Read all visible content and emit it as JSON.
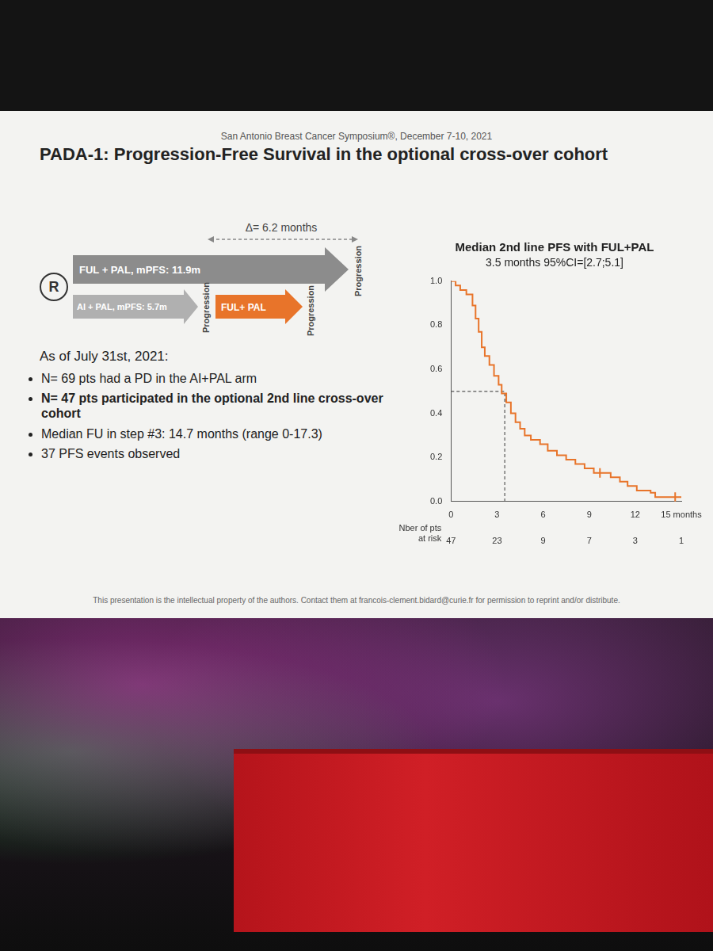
{
  "slide": {
    "header": "San Antonio Breast Cancer Symposium®, December 7-10, 2021",
    "title": "PADA-1: Progression-Free Survival in the optional cross-over cohort",
    "diagram": {
      "randomization": "R",
      "delta": "Δ= 6.2 months",
      "arm_1": "FUL + PAL, mPFS: 11.9m",
      "arm_2": "AI + PAL, mPFS: 5.7m",
      "cross_over": "FUL+ PAL",
      "event": "Progression"
    },
    "intro": "As of July 31st, 2021:",
    "bullets": [
      "N= 69 pts had a PD in the AI+PAL arm",
      "N= 47 pts participated in the optional 2nd line cross-over cohort",
      "Median FU in step #3: 14.7 months (range 0-17.3)",
      "37 PFS events observed"
    ],
    "footer": "This presentation is the intellectual property of the authors. Contact them at francois-clement.bidard@curie.fr for permission to reprint and/or distribute."
  },
  "chart_data": {
    "type": "line",
    "title": "Median 2nd line PFS with FUL+PAL",
    "subtitle": "3.5 months 95%CI=[2.7;5.1]",
    "series": [
      {
        "type": "step",
        "color": "#e8742a",
        "x": [
          0,
          0.3,
          0.6,
          1.0,
          1.4,
          1.6,
          1.8,
          2.0,
          2.2,
          2.5,
          2.8,
          3.1,
          3.3,
          3.6,
          3.9,
          4.2,
          4.5,
          4.8,
          5.2,
          5.8,
          6.3,
          6.9,
          7.5,
          8.1,
          8.7,
          9.3,
          10.4,
          11.0,
          11.5,
          12.1,
          13.0,
          13.3,
          15.0
        ],
        "values": [
          1.0,
          0.98,
          0.96,
          0.94,
          0.89,
          0.83,
          0.77,
          0.7,
          0.66,
          0.62,
          0.57,
          0.53,
          0.49,
          0.45,
          0.4,
          0.36,
          0.33,
          0.3,
          0.28,
          0.26,
          0.23,
          0.21,
          0.19,
          0.17,
          0.15,
          0.13,
          0.11,
          0.09,
          0.07,
          0.05,
          0.04,
          0.02,
          0.02
        ]
      },
      {
        "type": "scatter",
        "marker": "tick",
        "color": "#e8742a",
        "x": [
          9.7,
          14.6
        ],
        "values": [
          0.13,
          0.02
        ]
      },
      {
        "type": "line",
        "line_style": "dashed",
        "color": "#555555",
        "x": [
          0,
          3.5,
          3.5
        ],
        "values": [
          0.5,
          0.5,
          0
        ]
      }
    ],
    "xlim": [
      0,
      15
    ],
    "xticks": [
      0,
      3,
      6,
      9,
      12,
      {
        "value": 15,
        "label": "15 months"
      }
    ],
    "ylim": [
      0,
      1
    ],
    "yticks": [
      {
        "value": 0,
        "label": "0.0"
      },
      0.2,
      0.4,
      0.6,
      0.8,
      {
        "value": 1,
        "label": "1.0"
      }
    ],
    "grid": false,
    "at_risk": {
      "label": [
        "Nber of pts",
        "at risk"
      ],
      "x": [
        0,
        3,
        6,
        9,
        12,
        15
      ],
      "values": [
        47,
        23,
        9,
        7,
        3,
        1
      ]
    }
  }
}
